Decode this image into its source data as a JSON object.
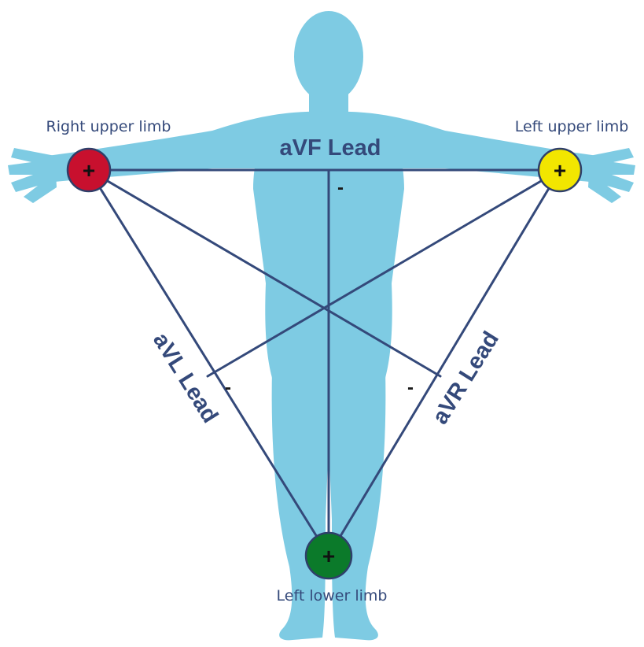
{
  "leads": {
    "top_label": "aVF Lead",
    "left_label": "aVL Lead",
    "right_label": "aVR Lead",
    "negative_sign": "-"
  },
  "electrodes": {
    "right_upper": {
      "label": "Right upper limb",
      "sign": "+",
      "color": "#c8102e"
    },
    "left_upper": {
      "label": "Left upper limb",
      "sign": "+",
      "color": "#f2e600"
    },
    "left_lower": {
      "label": "Left lower limb",
      "sign": "+",
      "color": "#0b7a2a"
    }
  },
  "colors": {
    "body": "#7ecbe3",
    "lines": "#34497a"
  },
  "icons": {
    "figure": "human-body-silhouette-icon"
  }
}
